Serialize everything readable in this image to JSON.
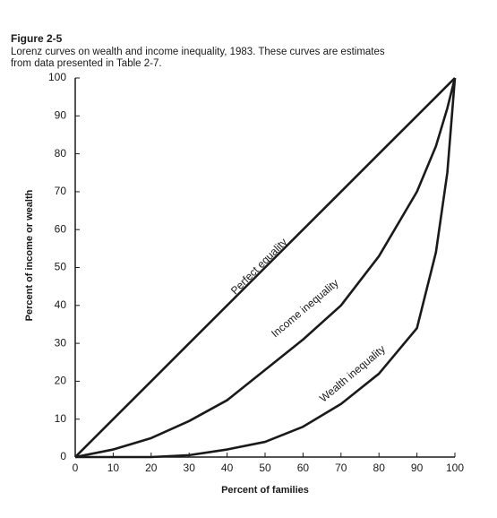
{
  "chart_data": {
    "type": "line",
    "title": "Figure 2-5",
    "subtitle": [
      "Lorenz curves on wealth and income inequality, 1983. These curves are estimates",
      "from data presented in Table 2-7."
    ],
    "x_label": "Percent of families",
    "y_label": "Percent of income or wealth",
    "x": [
      0,
      10,
      20,
      30,
      40,
      50,
      60,
      70,
      80,
      90,
      95,
      98,
      100
    ],
    "series": [
      {
        "name": "Perfect equality",
        "color": "#1a1a1a",
        "values": [
          0,
          10,
          20,
          30,
          40,
          50,
          60,
          70,
          80,
          90,
          95,
          98,
          100
        ]
      },
      {
        "name": "Income inequality",
        "color": "#1a1a1a",
        "values": [
          0,
          2,
          5,
          9.5,
          15,
          23,
          31,
          40,
          53,
          70,
          82,
          92,
          100
        ]
      },
      {
        "name": "Wealth inequality",
        "color": "#1a1a1a",
        "values": [
          0,
          0,
          0,
          0.5,
          2,
          4,
          8,
          14,
          22,
          34,
          54,
          75,
          100
        ]
      }
    ],
    "xlim": [
      0,
      100
    ],
    "ylim": [
      0,
      100
    ],
    "xticks": [
      0,
      10,
      20,
      30,
      40,
      50,
      60,
      70,
      80,
      90,
      100
    ],
    "yticks": [
      0,
      10,
      20,
      30,
      40,
      50,
      60,
      70,
      80,
      90,
      100
    ],
    "grid": false
  }
}
